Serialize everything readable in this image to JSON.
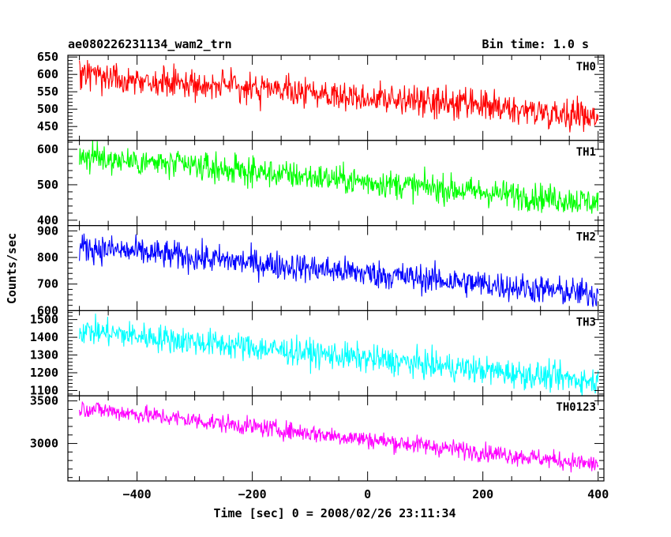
{
  "header": {
    "title": "ae080226231134_wam2_trn",
    "bin_time": "Bin time: 1.0 s"
  },
  "chart_data": {
    "type": "line",
    "x_axis": {
      "label": "Time [sec] 0 = 2008/02/26 23:11:34",
      "range": [
        -520,
        410
      ],
      "ticks": [
        -400,
        -200,
        0,
        200,
        400
      ],
      "tick_labels": [
        "−400",
        "−200",
        "0",
        "200",
        "400"
      ],
      "minor_step": 50
    },
    "y_label": "Counts/sec",
    "data_x_range": [
      -500,
      400
    ],
    "bin_time_s": 1.0,
    "panels": [
      {
        "name": "TH0",
        "color": "#ff0000",
        "ylim": [
          410,
          655
        ],
        "ticks": [
          450,
          500,
          550,
          600,
          650
        ],
        "tick_labels": [
          "450",
          "500",
          "550",
          "600",
          "650"
        ],
        "minor_step": 10,
        "trend_start": 600,
        "trend_end": 480,
        "noise_amplitude": 30
      },
      {
        "name": "TH1",
        "color": "#00ff00",
        "ylim": [
          385,
          625
        ],
        "ticks": [
          400,
          500,
          600
        ],
        "tick_labels": [
          "400",
          "500",
          "600"
        ],
        "minor_step": 20,
        "trend_start": 580,
        "trend_end": 450,
        "noise_amplitude": 28
      },
      {
        "name": "TH2",
        "color": "#0000ff",
        "ylim": [
          600,
          920
        ],
        "ticks": [
          600,
          700,
          800,
          900
        ],
        "tick_labels": [
          "600",
          "700",
          "800",
          "900"
        ],
        "minor_step": 20,
        "trend_start": 840,
        "trend_end": 660,
        "noise_amplitude": 38
      },
      {
        "name": "TH3",
        "color": "#00ffff",
        "ylim": [
          1070,
          1550
        ],
        "ticks": [
          1100,
          1200,
          1300,
          1400,
          1500
        ],
        "tick_labels": [
          "1100",
          "1200",
          "1300",
          "1400",
          "1500"
        ],
        "minor_step": 20,
        "trend_start": 1440,
        "trend_end": 1150,
        "noise_amplitude": 55
      },
      {
        "name": "TH0123",
        "color": "#ff00ff",
        "ylim": [
          2560,
          3560
        ],
        "ticks": [
          3000,
          3500
        ],
        "tick_labels": [
          "3000",
          "3500"
        ],
        "minor_step": 100,
        "trend_start": 3420,
        "trend_end": 2750,
        "noise_amplitude": 75
      }
    ]
  }
}
